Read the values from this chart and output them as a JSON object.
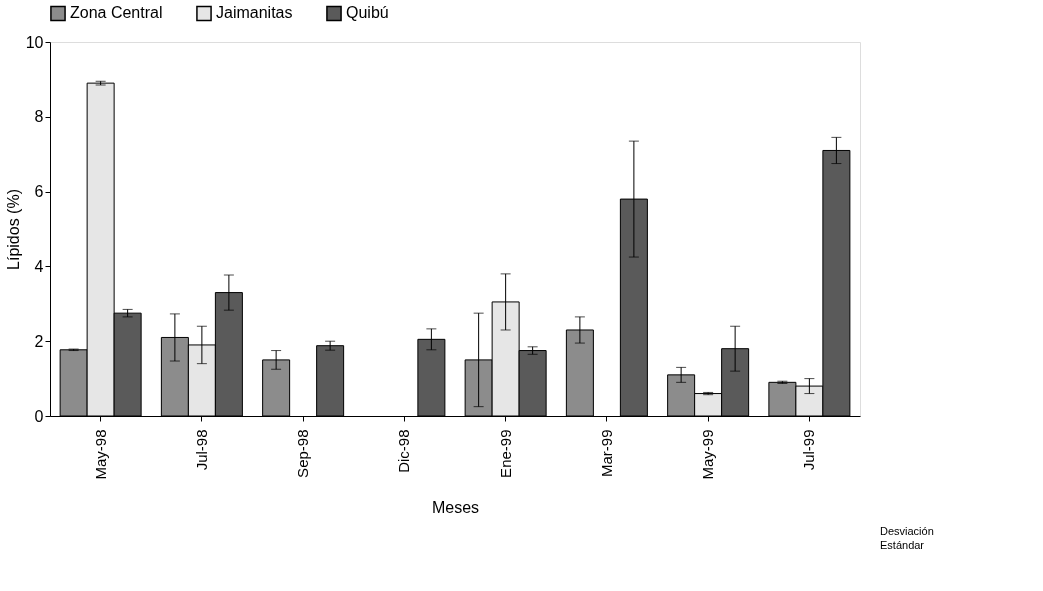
{
  "chart_data": {
    "type": "bar",
    "xlabel": "Meses",
    "ylabel": "Lípidos (%)",
    "categories": [
      "May-98",
      "Jul-98",
      "Sep-98",
      "Dic-98",
      "Ene-99",
      "Mar-99",
      "May-99",
      "Jul-99"
    ],
    "series": [
      {
        "name": "Zona Central",
        "color": "#8c8c8c",
        "values": [
          1.77,
          2.1,
          1.5,
          null,
          1.5,
          2.3,
          1.1,
          0.9
        ],
        "errors": [
          0.02,
          0.63,
          0.25,
          null,
          1.25,
          0.35,
          0.2,
          0.03
        ]
      },
      {
        "name": "Jaimanitas",
        "color": "#e6e6e6",
        "values": [
          8.9,
          1.9,
          null,
          null,
          3.05,
          null,
          0.6,
          0.8
        ],
        "errors": [
          0.05,
          0.5,
          null,
          null,
          0.75,
          null,
          0.03,
          0.2
        ]
      },
      {
        "name": "Quibú",
        "color": "#5a5a5a",
        "values": [
          2.75,
          3.3,
          1.88,
          2.05,
          1.75,
          5.8,
          1.8,
          7.1
        ],
        "errors": [
          0.1,
          0.47,
          0.12,
          0.28,
          0.1,
          1.55,
          0.6,
          0.35
        ]
      }
    ],
    "ylim": [
      0,
      10
    ],
    "yticks": [
      0,
      2,
      4,
      6,
      8,
      10
    ],
    "grid": false,
    "legend": "top",
    "annotations": [
      "Desviación Estándar"
    ]
  }
}
